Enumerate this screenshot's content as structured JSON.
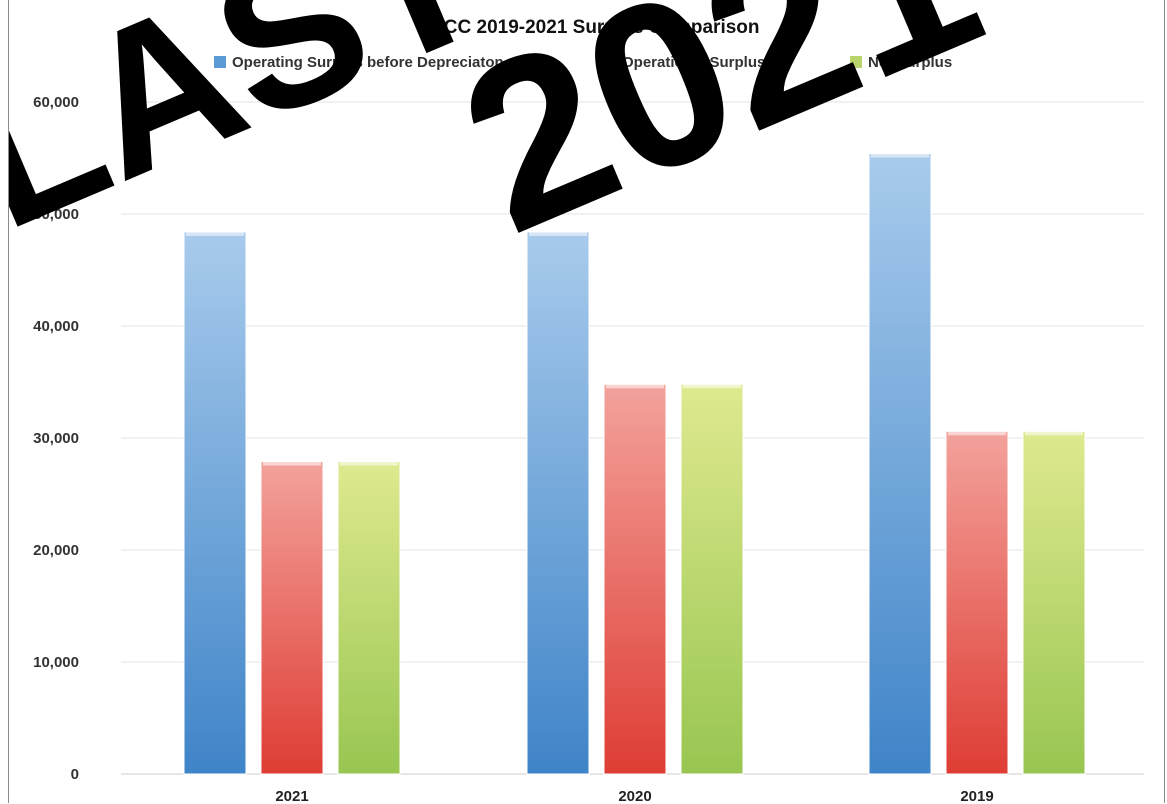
{
  "chart_data": {
    "type": "bar",
    "title": "THCC 2019-2021 Surplus Comparison",
    "xlabel": "",
    "ylabel": "",
    "categories": [
      "2021",
      "2020",
      "2019"
    ],
    "series": [
      {
        "name": "Operating Surplus before Depreciaton",
        "values": [
          48400,
          48400,
          55400
        ],
        "color": "#5b9bd5"
      },
      {
        "name": "Operational Surplus",
        "values": [
          27900,
          34800,
          30600
        ],
        "color": "#ec6a63"
      },
      {
        "name": "Net Surplus",
        "values": [
          27900,
          34800,
          30600
        ],
        "color": "#b8d66b"
      }
    ],
    "ylim": [
      0,
      60000
    ],
    "yticks": [
      0,
      10000,
      20000,
      30000,
      40000,
      50000,
      60000
    ],
    "ytick_labels": [
      "0",
      "10,000",
      "20,000",
      "30,000",
      "40,000",
      "50,000",
      "60,000"
    ],
    "grid": true,
    "legend_position": "top"
  },
  "watermark": [
    "LAST",
    "2021"
  ]
}
